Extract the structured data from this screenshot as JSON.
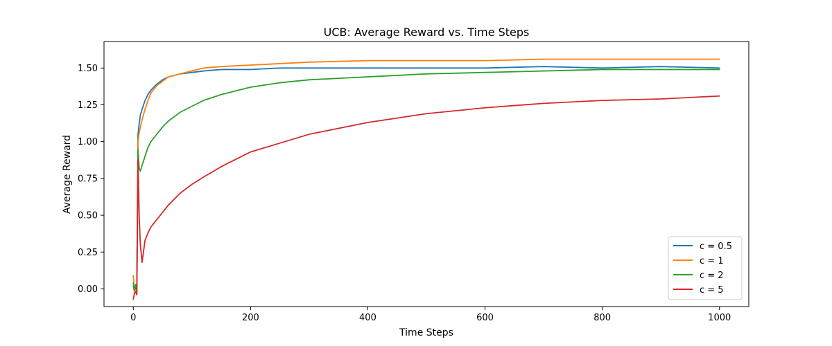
{
  "chart_data": {
    "type": "line",
    "title": "UCB: Average Reward vs. Time Steps",
    "xlabel": "Time Steps",
    "ylabel": "Average Reward",
    "xlim": [
      -50,
      1050
    ],
    "ylim": [
      -0.12,
      1.68
    ],
    "x_ticks": [
      0,
      200,
      400,
      600,
      800,
      1000
    ],
    "x_tick_labels": [
      "0",
      "200",
      "400",
      "600",
      "800",
      "1000"
    ],
    "y_ticks": [
      0.0,
      0.25,
      0.5,
      0.75,
      1.0,
      1.25,
      1.5
    ],
    "y_tick_labels": [
      "0.00",
      "0.25",
      "0.50",
      "0.75",
      "1.00",
      "1.25",
      "1.50"
    ],
    "grid": false,
    "legend_position": "lower-right",
    "series": [
      {
        "name": "c = 0.5",
        "color": "#1f77b4",
        "x": [
          0,
          2,
          4,
          6,
          8,
          10,
          12,
          15,
          20,
          25,
          30,
          40,
          50,
          60,
          70,
          80,
          100,
          120,
          150,
          200,
          250,
          300,
          400,
          500,
          600,
          700,
          800,
          900,
          1000
        ],
        "values": [
          0.02,
          -0.02,
          0.0,
          0.03,
          1.05,
          1.12,
          1.18,
          1.22,
          1.28,
          1.32,
          1.35,
          1.39,
          1.42,
          1.44,
          1.45,
          1.46,
          1.47,
          1.48,
          1.49,
          1.49,
          1.5,
          1.5,
          1.5,
          1.5,
          1.5,
          1.51,
          1.5,
          1.51,
          1.5
        ]
      },
      {
        "name": "c = 1",
        "color": "#ff7f0e",
        "x": [
          0,
          2,
          4,
          6,
          8,
          10,
          12,
          15,
          20,
          25,
          30,
          40,
          50,
          60,
          70,
          80,
          100,
          120,
          150,
          200,
          250,
          300,
          400,
          500,
          600,
          700,
          800,
          900,
          1000
        ],
        "values": [
          0.09,
          -0.03,
          0.02,
          -0.02,
          1.0,
          1.06,
          1.1,
          1.15,
          1.22,
          1.28,
          1.33,
          1.38,
          1.41,
          1.44,
          1.45,
          1.46,
          1.48,
          1.5,
          1.51,
          1.52,
          1.53,
          1.54,
          1.55,
          1.55,
          1.55,
          1.56,
          1.56,
          1.56,
          1.56
        ]
      },
      {
        "name": "c = 2",
        "color": "#2ca02c",
        "x": [
          0,
          2,
          4,
          6,
          8,
          10,
          12,
          15,
          20,
          25,
          30,
          40,
          50,
          60,
          70,
          80,
          100,
          120,
          150,
          200,
          250,
          300,
          400,
          500,
          600,
          700,
          800,
          900,
          1000
        ],
        "values": [
          0.04,
          -0.01,
          0.03,
          -0.02,
          0.95,
          0.82,
          0.8,
          0.84,
          0.9,
          0.96,
          1.0,
          1.05,
          1.1,
          1.14,
          1.17,
          1.2,
          1.24,
          1.28,
          1.32,
          1.37,
          1.4,
          1.42,
          1.44,
          1.46,
          1.47,
          1.48,
          1.49,
          1.49,
          1.49
        ]
      },
      {
        "name": "c = 5",
        "color": "#d62728",
        "x": [
          0,
          2,
          4,
          6,
          8,
          10,
          12,
          15,
          20,
          25,
          30,
          40,
          50,
          60,
          70,
          80,
          100,
          120,
          150,
          200,
          250,
          300,
          400,
          500,
          600,
          700,
          800,
          900,
          1000
        ],
        "values": [
          -0.07,
          -0.03,
          -0.02,
          -0.04,
          0.88,
          0.5,
          0.3,
          0.18,
          0.33,
          0.38,
          0.42,
          0.47,
          0.52,
          0.57,
          0.61,
          0.65,
          0.71,
          0.76,
          0.83,
          0.93,
          0.99,
          1.05,
          1.13,
          1.19,
          1.23,
          1.26,
          1.28,
          1.29,
          1.31
        ]
      }
    ]
  }
}
